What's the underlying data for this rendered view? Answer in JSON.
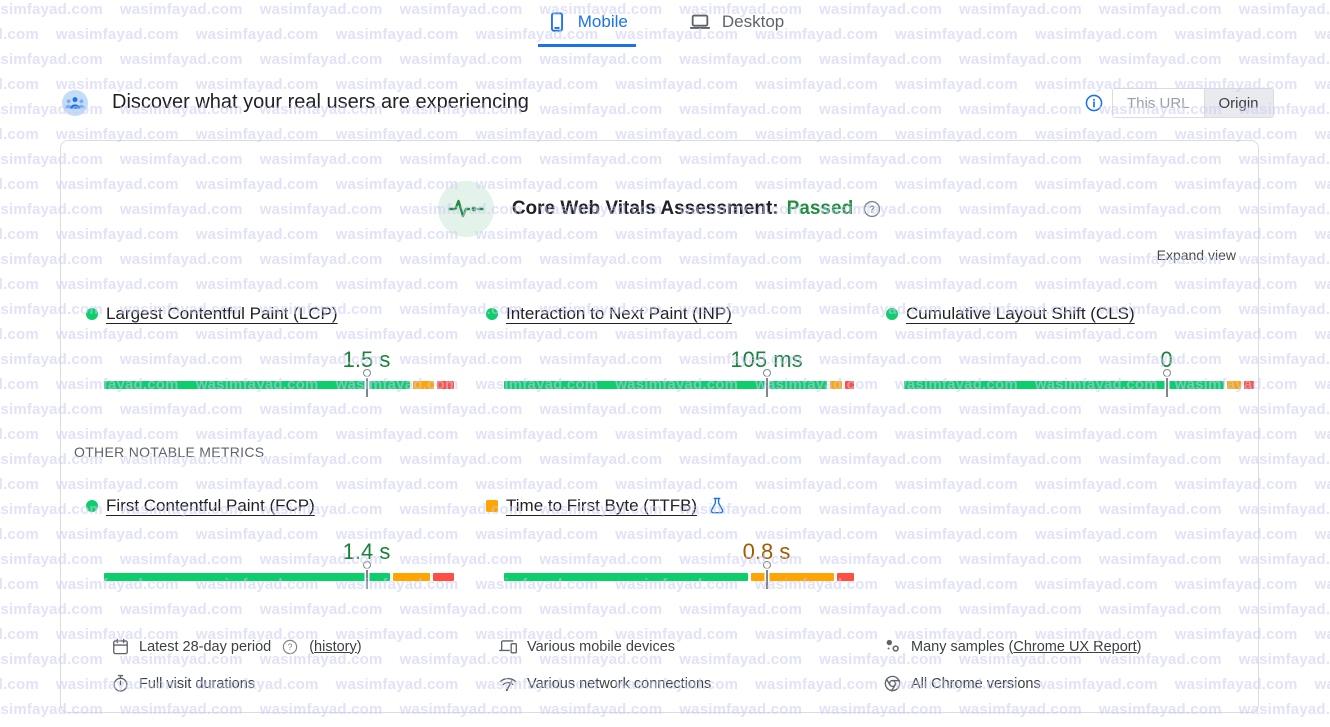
{
  "watermark": {
    "text": "wasimfayad.com",
    "color": "#c9cbf0"
  },
  "colors": {
    "accent_blue": "#1a73e8",
    "good_green": "#0cce6b",
    "needs_improvement_orange": "#ffa400",
    "poor_red": "#ff4e42",
    "value_green": "#188038",
    "passed_green": "#1e8e3e",
    "ttfb_value_brown": "#a05a00"
  },
  "tabs": {
    "mobile": "Mobile",
    "desktop": "Desktop",
    "active": "Mobile"
  },
  "header": {
    "title": "Discover what your real users are experiencing",
    "scope_toggle": {
      "this_url": "This URL",
      "origin": "Origin",
      "selected": "Origin"
    }
  },
  "assessment": {
    "label": "Core Web Vitals Assessment:",
    "status": "Passed"
  },
  "expand_view": "Expand view",
  "section_label": "OTHER NOTABLE METRICS",
  "metrics": [
    {
      "name": "Largest Contentful Paint (LCP)",
      "value": "1.5 s",
      "value_color": "#188038",
      "indicator_shape": "circle",
      "indicator_color": "#0cce6b",
      "distribution": {
        "good": 89,
        "needs_improvement": 6,
        "poor": 5
      },
      "p75_marker": 75,
      "experimental": false
    },
    {
      "name": "Interaction to Next Paint (INP)",
      "value": "105 ms",
      "value_color": "#188038",
      "indicator_shape": "circle",
      "indicator_color": "#0cce6b",
      "distribution": {
        "good": 94,
        "needs_improvement": 3.5,
        "poor": 2.5
      },
      "p75_marker": 75,
      "experimental": false
    },
    {
      "name": "Cumulative Layout Shift (CLS)",
      "value": "0",
      "value_color": "#188038",
      "indicator_shape": "circle",
      "indicator_color": "#0cce6b",
      "distribution": {
        "good": 93,
        "needs_improvement": 4,
        "poor": 3
      },
      "p75_marker": 75,
      "experimental": false
    },
    {
      "name": "First Contentful Paint (FCP)",
      "value": "1.4 s",
      "value_color": "#188038",
      "indicator_shape": "circle",
      "indicator_color": "#0cce6b",
      "distribution": {
        "good": 83,
        "needs_improvement": 11,
        "poor": 6
      },
      "p75_marker": 75,
      "experimental": false
    },
    {
      "name": "Time to First Byte (TTFB)",
      "value": "0.8 s",
      "value_color": "#a05a00",
      "indicator_shape": "square",
      "indicator_color": "#ffa400",
      "distribution": {
        "good": 71,
        "needs_improvement": 24,
        "poor": 5
      },
      "p75_marker": 75,
      "experimental": true
    }
  ],
  "details": {
    "period": {
      "text": "Latest 28-day period",
      "link_prefix": "(",
      "link": "history",
      "link_suffix": ")"
    },
    "devices": {
      "text": "Various mobile devices"
    },
    "samples": {
      "text_prefix": "Many samples (",
      "link": "Chrome UX Report",
      "text_suffix": ")"
    },
    "durations": {
      "text": "Full visit durations"
    },
    "network": {
      "text": "Various network connections"
    },
    "chrome": {
      "text": "All Chrome versions"
    }
  }
}
